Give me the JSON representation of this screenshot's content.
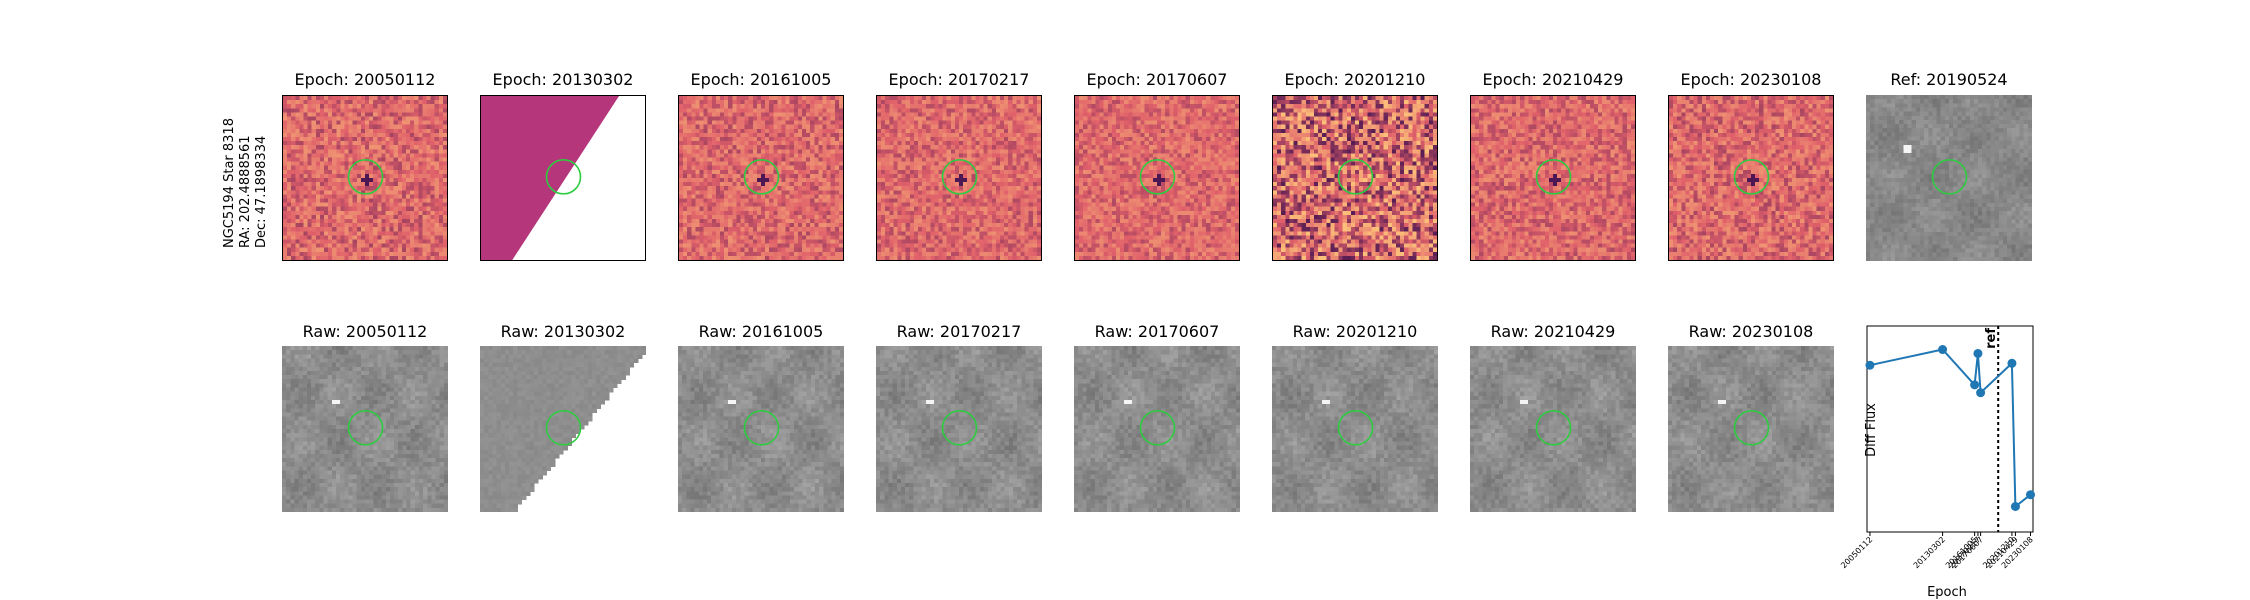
{
  "target": {
    "name": "NGC5194 Star 8318",
    "ra": "RA: 202.4888561",
    "dec": "Dec: 47.1898334"
  },
  "diff_titles": [
    "Epoch: 20050112",
    "Epoch: 20130302",
    "Epoch: 20161005",
    "Epoch: 20170217",
    "Epoch: 20170607",
    "Epoch: 20201210",
    "Epoch: 20210429",
    "Epoch: 20230108"
  ],
  "ref_title": "Ref: 20190524",
  "raw_titles": [
    "Raw: 20050112",
    "Raw: 20130302",
    "Raw: 20161005",
    "Raw: 20170217",
    "Raw: 20170607",
    "Raw: 20201210",
    "Raw: 20210429",
    "Raw: 20230108"
  ],
  "colors": {
    "circle": "#2ecc40",
    "magma_mid": "#e0606a",
    "magma_dark": "#3b0f4f",
    "magma_bright": "#fcbf7a",
    "partial_fill": "#b5367a",
    "gray_bg": "#8c8c8c",
    "line": "#1f77b4"
  },
  "chart_data": {
    "type": "line",
    "categories": [
      "20050112",
      "20130302",
      "20161005",
      "20170217",
      "20170607",
      "20201210",
      "20210429",
      "20230108"
    ],
    "x": [
      2005.03,
      2013.17,
      2016.76,
      2017.13,
      2017.43,
      2020.94,
      2021.33,
      2023.02
    ],
    "values": [
      0.8,
      0.88,
      0.7,
      0.86,
      0.66,
      0.81,
      0.08,
      0.14
    ],
    "ref_x": 2019.4,
    "ref_label": "ref",
    "xlabel": "Epoch",
    "ylabel": "Diff Flux",
    "xlim": [
      2004.7,
      2023.3
    ],
    "ylim": [
      -0.05,
      1.0
    ]
  }
}
